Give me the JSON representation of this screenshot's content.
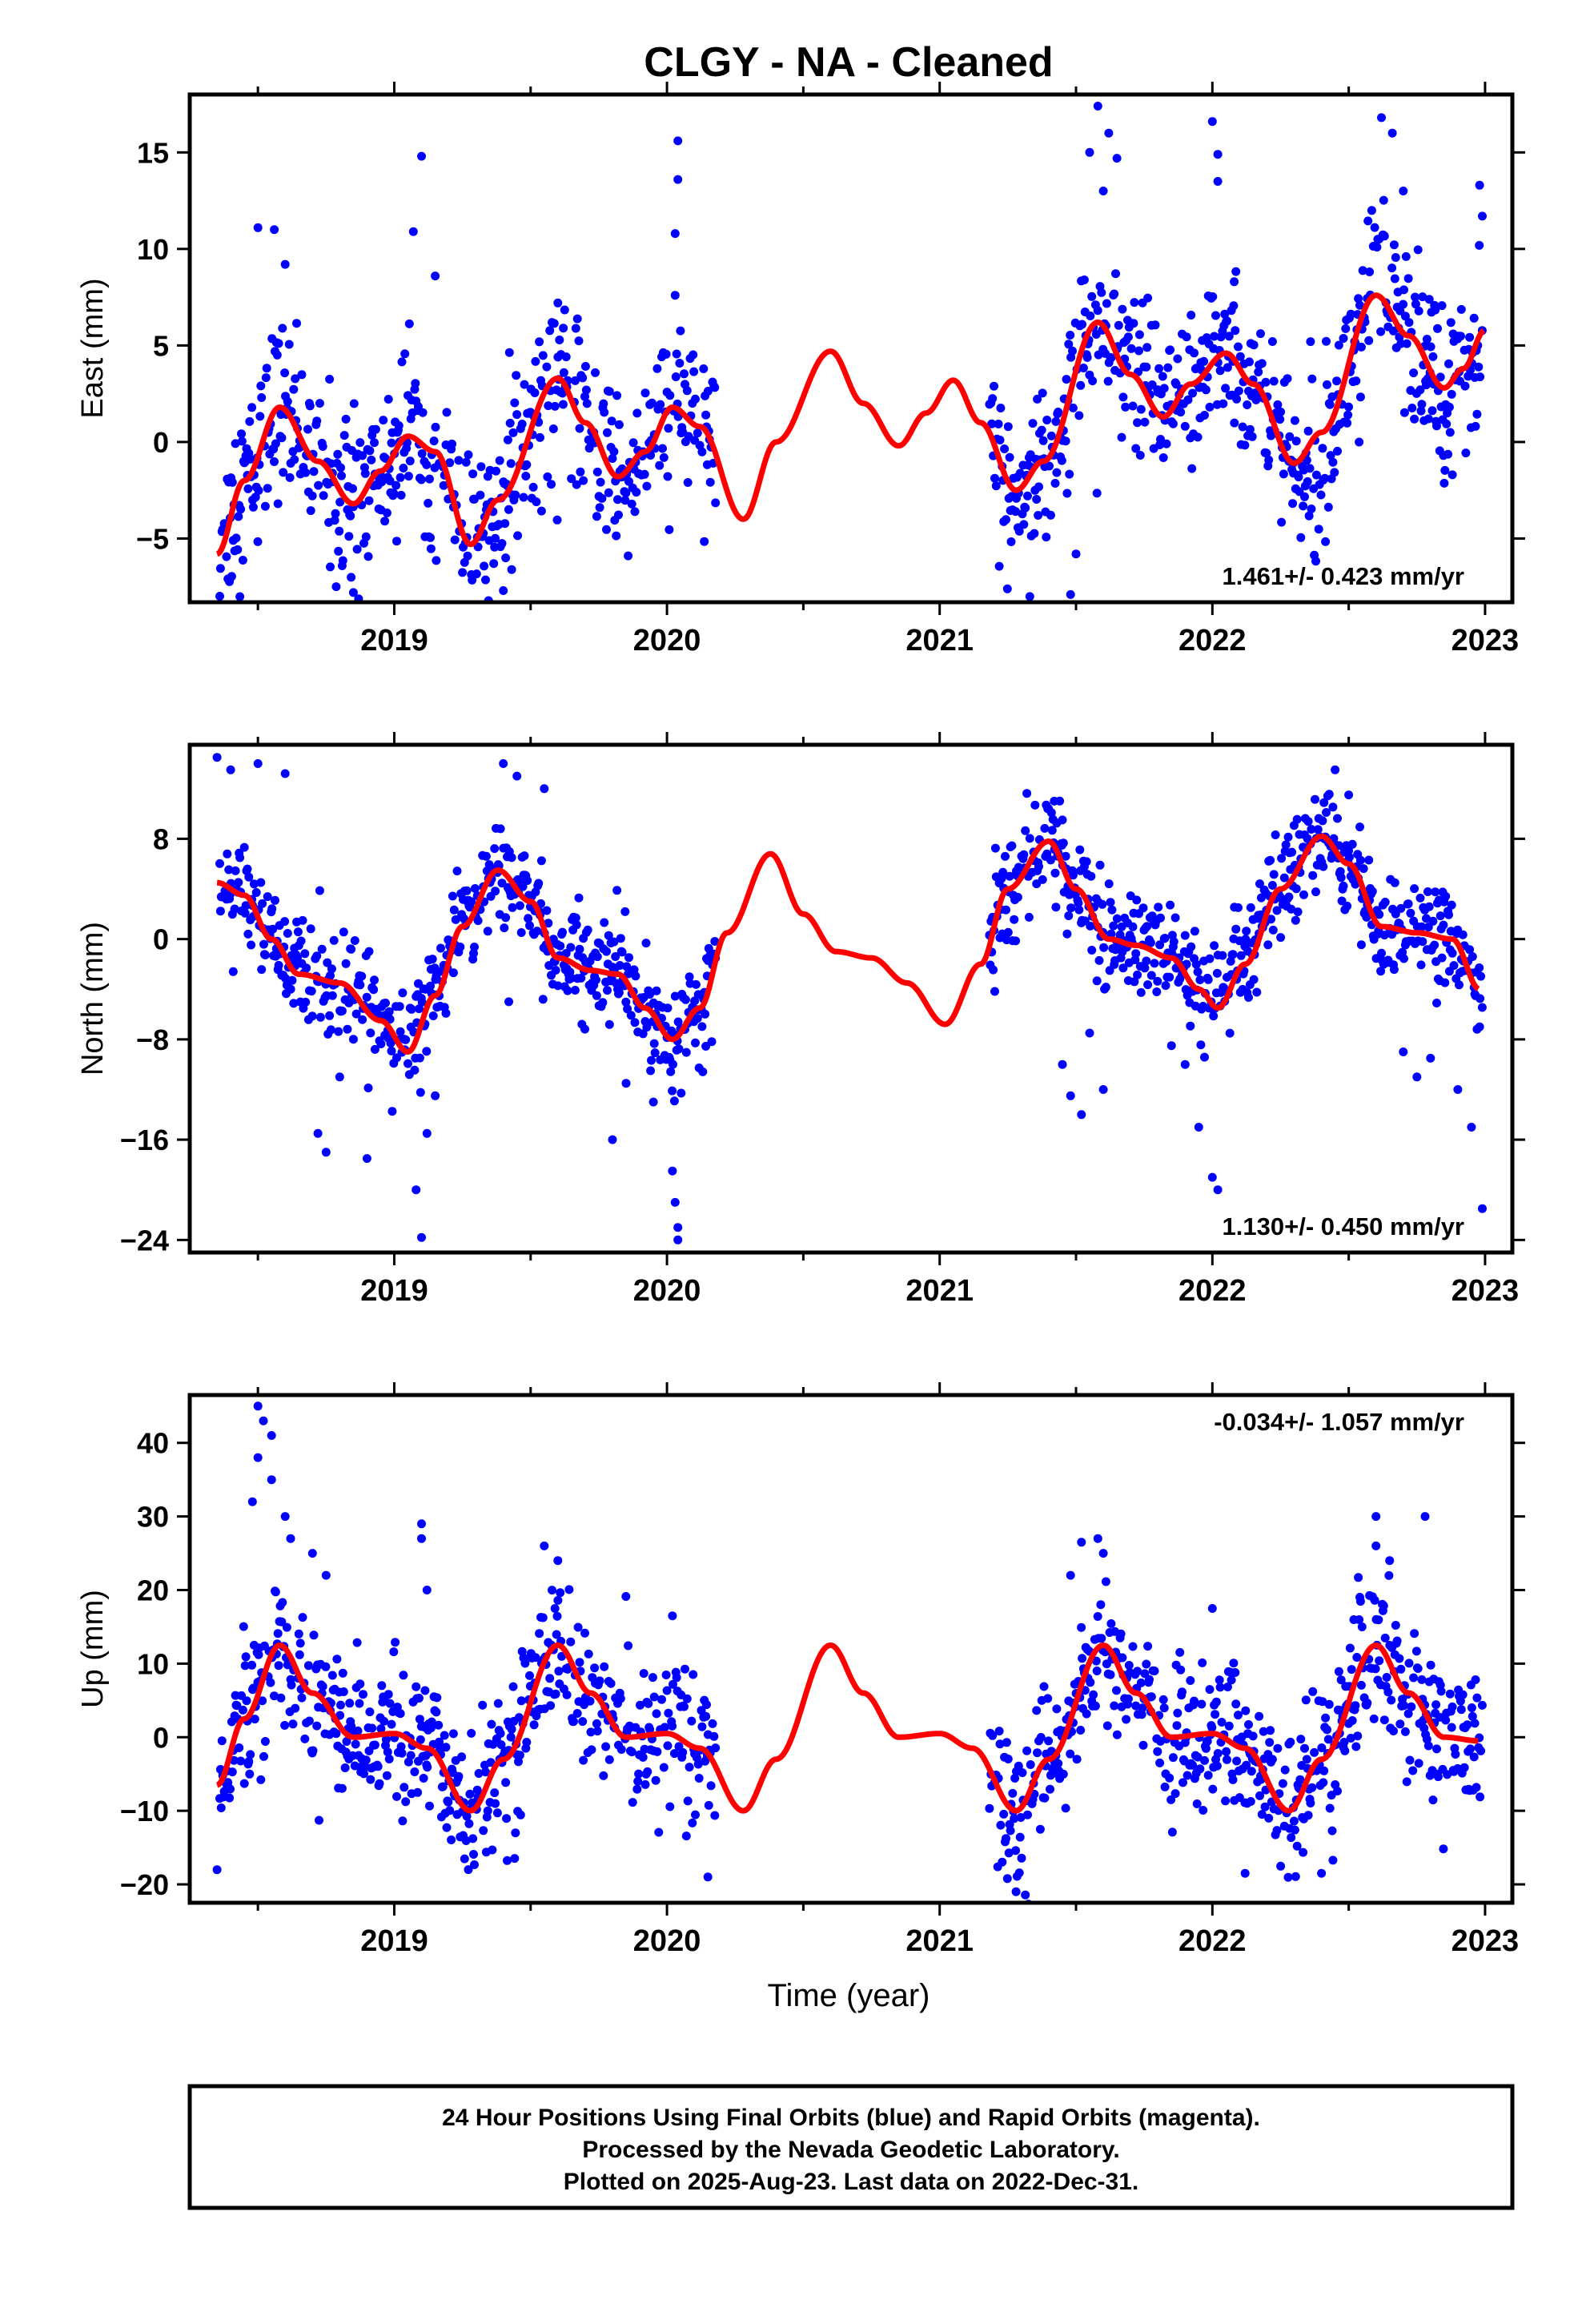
{
  "chart_data": {
    "title": "CLGY  - NA - Cleaned",
    "type": "scatter",
    "x_label": "Time (year)",
    "x_range": [
      2018.25,
      2023.1
    ],
    "x_ticks": [
      2019,
      2020,
      2021,
      2022,
      2023
    ],
    "series_colors": {
      "final_orbits": "#0000ff",
      "model_fit": "#ff0000"
    },
    "data_gaps": [
      [
        2020.18,
        2021.18
      ]
    ],
    "panels": [
      {
        "id": "east",
        "ylabel": "East (mm)",
        "ylim": [
          -8.3,
          18.0
        ],
        "yticks": [
          -5,
          0,
          5,
          10,
          15
        ],
        "rate_label": "1.461+/- 0.423 mm/yr",
        "rate_position": "bottom-right",
        "fit_points": [
          [
            2018.35,
            -5.8
          ],
          [
            2018.45,
            -2.0
          ],
          [
            2018.58,
            1.8
          ],
          [
            2018.72,
            -1.0
          ],
          [
            2018.85,
            -3.2
          ],
          [
            2018.95,
            -1.5
          ],
          [
            2019.05,
            0.3
          ],
          [
            2019.15,
            -0.5
          ],
          [
            2019.28,
            -5.3
          ],
          [
            2019.38,
            -3.0
          ],
          [
            2019.6,
            3.3
          ],
          [
            2019.7,
            1.0
          ],
          [
            2019.82,
            -1.8
          ],
          [
            2019.92,
            -0.5
          ],
          [
            2020.02,
            1.8
          ],
          [
            2020.12,
            0.8
          ],
          [
            2020.28,
            -4.0
          ],
          [
            2020.4,
            0.0
          ],
          [
            2020.6,
            4.7
          ],
          [
            2020.72,
            2.0
          ],
          [
            2020.85,
            -0.2
          ],
          [
            2020.95,
            1.5
          ],
          [
            2021.05,
            3.2
          ],
          [
            2021.15,
            1.0
          ],
          [
            2021.28,
            -2.5
          ],
          [
            2021.38,
            -1.0
          ],
          [
            2021.58,
            6.2
          ],
          [
            2021.7,
            3.5
          ],
          [
            2021.82,
            1.3
          ],
          [
            2021.92,
            3.0
          ],
          [
            2022.05,
            4.6
          ],
          [
            2022.15,
            3.0
          ],
          [
            2022.3,
            -1.1
          ],
          [
            2022.4,
            0.5
          ],
          [
            2022.6,
            7.6
          ],
          [
            2022.72,
            5.5
          ],
          [
            2022.85,
            2.8
          ],
          [
            2022.92,
            3.8
          ],
          [
            2023.0,
            5.8
          ]
        ],
        "scatter_spread": 2.2,
        "outliers": [
          [
            2018.5,
            11.1
          ],
          [
            2018.56,
            11.0
          ],
          [
            2018.6,
            9.2
          ],
          [
            2019.1,
            14.8
          ],
          [
            2019.07,
            10.9
          ],
          [
            2019.15,
            8.6
          ],
          [
            2020.04,
            15.6
          ],
          [
            2020.04,
            13.6
          ],
          [
            2020.03,
            10.8
          ],
          [
            2020.03,
            7.6
          ],
          [
            2019.6,
            7.2
          ],
          [
            2019.62,
            5.9
          ],
          [
            2021.55,
            15.0
          ],
          [
            2021.6,
            13.0
          ],
          [
            2021.65,
            14.7
          ],
          [
            2021.58,
            17.4
          ],
          [
            2021.62,
            16.0
          ],
          [
            2022.0,
            16.6
          ],
          [
            2022.02,
            14.9
          ],
          [
            2022.02,
            13.5
          ],
          [
            2022.08,
            8.3
          ],
          [
            2022.62,
            16.8
          ],
          [
            2022.66,
            16.0
          ],
          [
            2022.7,
            13.0
          ],
          [
            2022.98,
            13.3
          ],
          [
            2022.99,
            11.7
          ],
          [
            2021.5,
            -5.8
          ],
          [
            2021.48,
            -7.9
          ],
          [
            2018.85,
            -7.8
          ],
          [
            2019.4,
            -7.7
          ]
        ]
      },
      {
        "id": "north",
        "ylabel": "North (mm)",
        "ylim": [
          -25.0,
          15.5
        ],
        "yticks": [
          -24,
          -16,
          -8,
          0,
          8
        ],
        "rate_label": "1.130+/- 0.450 mm/yr",
        "rate_position": "bottom-right",
        "fit_points": [
          [
            2018.35,
            4.5
          ],
          [
            2018.45,
            3.5
          ],
          [
            2018.55,
            0.0
          ],
          [
            2018.65,
            -2.8
          ],
          [
            2018.8,
            -3.5
          ],
          [
            2018.95,
            -6.5
          ],
          [
            2019.05,
            -9.0
          ],
          [
            2019.15,
            -4.5
          ],
          [
            2019.25,
            1.0
          ],
          [
            2019.38,
            5.5
          ],
          [
            2019.5,
            3.0
          ],
          [
            2019.6,
            -1.5
          ],
          [
            2019.72,
            -2.5
          ],
          [
            2019.82,
            -2.8
          ],
          [
            2019.92,
            -5.5
          ],
          [
            2020.02,
            -8.0
          ],
          [
            2020.12,
            -5.5
          ],
          [
            2020.22,
            0.5
          ],
          [
            2020.38,
            6.8
          ],
          [
            2020.5,
            2.0
          ],
          [
            2020.62,
            -1.0
          ],
          [
            2020.75,
            -1.5
          ],
          [
            2020.88,
            -3.5
          ],
          [
            2021.02,
            -6.8
          ],
          [
            2021.15,
            -2.0
          ],
          [
            2021.25,
            4.0
          ],
          [
            2021.4,
            7.8
          ],
          [
            2021.5,
            4.0
          ],
          [
            2021.62,
            0.0
          ],
          [
            2021.72,
            -0.5
          ],
          [
            2021.85,
            -1.5
          ],
          [
            2021.95,
            -4.0
          ],
          [
            2022.02,
            -5.5
          ],
          [
            2022.12,
            -2.0
          ],
          [
            2022.25,
            4.0
          ],
          [
            2022.4,
            8.2
          ],
          [
            2022.5,
            6.0
          ],
          [
            2022.62,
            1.0
          ],
          [
            2022.75,
            0.5
          ],
          [
            2022.88,
            0.0
          ],
          [
            2022.98,
            -4.0
          ]
        ],
        "scatter_spread": 2.0,
        "outliers": [
          [
            2018.35,
            14.5
          ],
          [
            2018.4,
            13.5
          ],
          [
            2018.5,
            14.0
          ],
          [
            2018.6,
            13.2
          ],
          [
            2018.72,
            -15.5
          ],
          [
            2018.75,
            -17.0
          ],
          [
            2018.9,
            -17.5
          ],
          [
            2018.8,
            -11.0
          ],
          [
            2019.08,
            -20.0
          ],
          [
            2019.1,
            -23.8
          ],
          [
            2019.12,
            -15.5
          ],
          [
            2019.15,
            -12.5
          ],
          [
            2019.4,
            14.0
          ],
          [
            2019.45,
            13.0
          ],
          [
            2019.55,
            12.0
          ],
          [
            2019.42,
            -5.0
          ],
          [
            2019.8,
            -16.0
          ],
          [
            2019.85,
            -11.5
          ],
          [
            2019.95,
            -13.0
          ],
          [
            2020.02,
            -18.5
          ],
          [
            2020.03,
            -21.0
          ],
          [
            2020.04,
            -23.0
          ],
          [
            2020.04,
            -24.0
          ],
          [
            2021.42,
            11.0
          ],
          [
            2021.45,
            9.5
          ],
          [
            2021.45,
            -10.0
          ],
          [
            2021.48,
            -12.5
          ],
          [
            2021.52,
            -14.0
          ],
          [
            2021.6,
            -12.0
          ],
          [
            2021.55,
            -7.5
          ],
          [
            2021.85,
            -8.5
          ],
          [
            2021.9,
            -10.0
          ],
          [
            2021.95,
            -15.0
          ],
          [
            2022.0,
            -19.0
          ],
          [
            2022.02,
            -20.0
          ],
          [
            2022.45,
            13.5
          ],
          [
            2022.5,
            11.5
          ],
          [
            2022.7,
            -9.0
          ],
          [
            2022.75,
            -11.0
          ],
          [
            2022.8,
            -9.5
          ],
          [
            2022.9,
            -12.0
          ],
          [
            2022.95,
            -15.0
          ],
          [
            2022.98,
            -7.0
          ],
          [
            2022.99,
            -21.5
          ]
        ]
      },
      {
        "id": "up",
        "ylabel": "Up (mm)",
        "ylim": [
          -22.5,
          46.5
        ],
        "yticks": [
          -20,
          -10,
          0,
          10,
          20,
          30,
          40
        ],
        "rate_label": "-0.034+/- 1.057 mm/yr",
        "rate_position": "top-right",
        "fit_points": [
          [
            2018.35,
            -6.5
          ],
          [
            2018.45,
            2.5
          ],
          [
            2018.58,
            12.5
          ],
          [
            2018.7,
            6.0
          ],
          [
            2018.85,
            0.0
          ],
          [
            2019.0,
            0.5
          ],
          [
            2019.12,
            -1.5
          ],
          [
            2019.28,
            -10.0
          ],
          [
            2019.4,
            -3.0
          ],
          [
            2019.6,
            12.5
          ],
          [
            2019.72,
            6.0
          ],
          [
            2019.85,
            0.0
          ],
          [
            2020.0,
            0.5
          ],
          [
            2020.12,
            -1.5
          ],
          [
            2020.28,
            -10.0
          ],
          [
            2020.4,
            -3.0
          ],
          [
            2020.6,
            12.5
          ],
          [
            2020.72,
            6.0
          ],
          [
            2020.85,
            0.0
          ],
          [
            2021.0,
            0.5
          ],
          [
            2021.12,
            -1.5
          ],
          [
            2021.28,
            -10.0
          ],
          [
            2021.4,
            -3.0
          ],
          [
            2021.6,
            12.5
          ],
          [
            2021.72,
            6.0
          ],
          [
            2021.85,
            0.0
          ],
          [
            2022.0,
            0.5
          ],
          [
            2022.12,
            -1.5
          ],
          [
            2022.28,
            -10.0
          ],
          [
            2022.4,
            -3.0
          ],
          [
            2022.6,
            12.5
          ],
          [
            2022.72,
            6.0
          ],
          [
            2022.85,
            0.0
          ],
          [
            2022.98,
            -0.5
          ]
        ],
        "scatter_spread": 5.0,
        "outliers": [
          [
            2018.5,
            45.0
          ],
          [
            2018.52,
            43.0
          ],
          [
            2018.55,
            41.0
          ],
          [
            2018.5,
            38.0
          ],
          [
            2018.55,
            35.0
          ],
          [
            2018.48,
            32.0
          ],
          [
            2018.6,
            30.0
          ],
          [
            2018.62,
            27.0
          ],
          [
            2018.7,
            25.0
          ],
          [
            2018.75,
            22.0
          ],
          [
            2019.1,
            29.0
          ],
          [
            2019.1,
            27.0
          ],
          [
            2019.12,
            20.0
          ],
          [
            2019.55,
            26.0
          ],
          [
            2019.6,
            24.0
          ],
          [
            2020.02,
            16.5
          ],
          [
            2021.52,
            26.5
          ],
          [
            2021.58,
            27.0
          ],
          [
            2021.6,
            25.0
          ],
          [
            2021.48,
            22.0
          ],
          [
            2022.0,
            17.5
          ],
          [
            2022.6,
            26.0
          ],
          [
            2022.65,
            24.0
          ],
          [
            2022.6,
            30.0
          ],
          [
            2022.78,
            30.0
          ],
          [
            2021.28,
            -21.0
          ],
          [
            2020.15,
            -19.0
          ],
          [
            2018.35,
            -18.0
          ],
          [
            2022.12,
            -18.5
          ],
          [
            2022.4,
            -18.5
          ]
        ]
      }
    ]
  },
  "footer": {
    "line1": "24 Hour Positions Using Final Orbits (blue) and Rapid Orbits (magenta).",
    "line2": "Processed by the Nevada Geodetic Laboratory.",
    "line3": "Plotted on 2025-Aug-23. Last data on 2022-Dec-31."
  }
}
